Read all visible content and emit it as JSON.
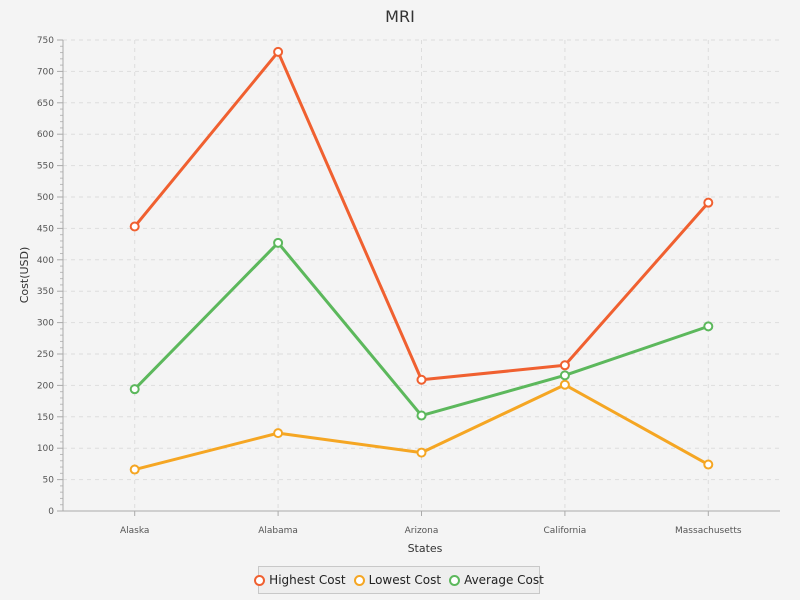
{
  "chart_data": {
    "type": "line",
    "title": "MRI",
    "xlabel": "States",
    "ylabel": "Cost(USD)",
    "categories": [
      "Alaska",
      "Alabama",
      "Arizona",
      "California",
      "Massachusetts"
    ],
    "ylim": [
      0,
      750
    ],
    "yticks": [
      0,
      50,
      100,
      150,
      200,
      250,
      300,
      350,
      400,
      450,
      500,
      550,
      600,
      650,
      700,
      750
    ],
    "grid": true,
    "legend_position": "bottom",
    "series": [
      {
        "name": "Highest Cost",
        "color": "#f06030",
        "values": [
          453,
          731,
          209,
          232,
          491
        ]
      },
      {
        "name": "Lowest Cost",
        "color": "#f5a623",
        "values": [
          66,
          124,
          93,
          201,
          74
        ]
      },
      {
        "name": "Average Cost",
        "color": "#5cb85c",
        "values": [
          194,
          427,
          152,
          216,
          294
        ]
      }
    ]
  }
}
